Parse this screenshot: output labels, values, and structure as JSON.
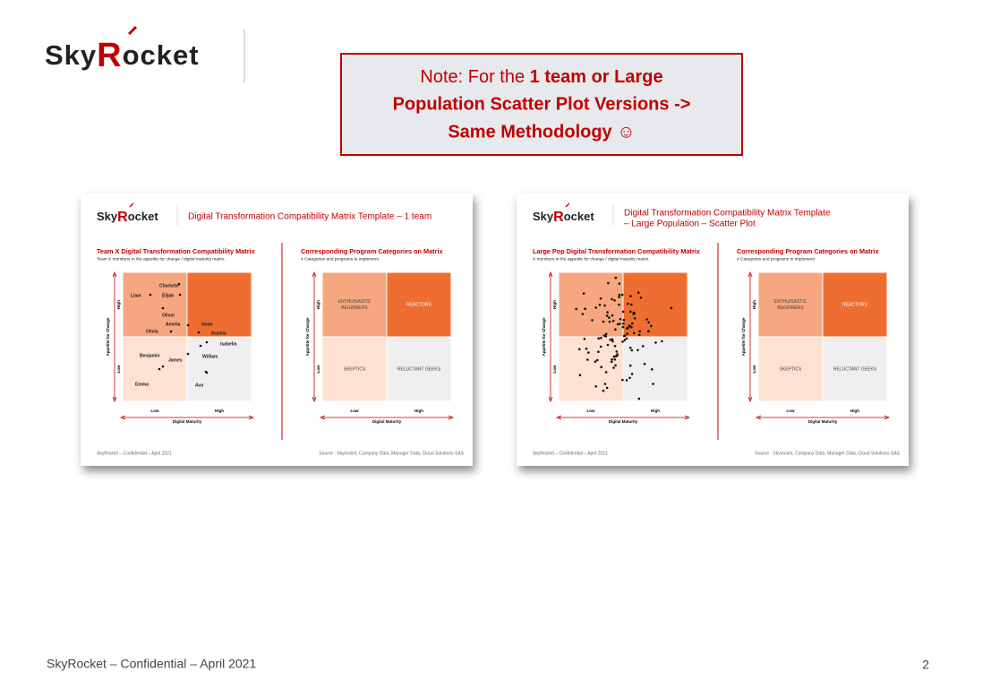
{
  "logo": {
    "parts": [
      "Sky",
      "R",
      "ocket"
    ]
  },
  "note": {
    "line1_regular": "Note: For the ",
    "line1_bold": "1 team or Large",
    "line2": "Population Scatter Plot Versions ->",
    "line3": "Same Methodology ☺"
  },
  "slides": [
    {
      "logo": [
        "Sky",
        "R",
        "ocket"
      ],
      "title": [
        "Digital Transformation Compatibility Matrix Template – 1 team"
      ],
      "left": {
        "title": "Team X Digital Transformation Compatibility Matrix",
        "subtitle": "Team X members in the appetite for change / digital maturity matrix.",
        "y_label": "Appetite for Change",
        "y_high": "High",
        "y_low": "Low",
        "x_label": "Digital Maturity",
        "x_low": "Low",
        "x_high": "High",
        "members": [
          "Charlotte",
          "Liam",
          "Elijah",
          "Oliver",
          "Amelia",
          "Noah",
          "Olivia",
          "Sophia",
          "Isabella",
          "Benjamin",
          "James",
          "William",
          "Emma",
          "Ava"
        ]
      },
      "right": {
        "title": "Corresponding Program Categories on Matrix",
        "subtitle": "4 Categories and programs to implement",
        "y_label": "Appetite for Change",
        "y_high": "High",
        "y_low": "Low",
        "x_label": "Digital Maturity",
        "x_low": "Low",
        "x_high": "High",
        "quadrants": [
          [
            "ENTHUISASTIC",
            "BEGINNERS"
          ],
          [
            "REACTORS"
          ],
          [
            "SKEPTICS"
          ],
          [
            "RELUCTANT GEEKS"
          ]
        ]
      },
      "footer": "SkyRocket – Confidential – April 2021",
      "source": "Source : Skyrocket, Company Data, Manager Data, Cloud Solutions SAS"
    },
    {
      "logo": [
        "Sky",
        "R",
        "ocket"
      ],
      "title": [
        "Digital Transformation Compatibility Matrix Template",
        "– Large Population – Scatter Plot"
      ],
      "left": {
        "title": "Large Pop Digital Transformation Compatibility Matrix",
        "subtitle": "X members in the appetite for change / digital maturity matrix.",
        "y_label": "Appetite for Change",
        "y_high": "High",
        "y_low": "Low",
        "x_label": "Digital Maturity",
        "x_low": "Low",
        "x_high": "High"
      },
      "right": {
        "title": "Corresponding Program Categories on Matrix",
        "subtitle": "4 Categories and programs to implement",
        "y_label": "Appetite for Change",
        "y_high": "High",
        "y_low": "Low",
        "x_label": "Digital Maturity",
        "x_low": "Low",
        "x_high": "High",
        "quadrants": [
          [
            "ENTHUISASTIC",
            "BEGINNERS"
          ],
          [
            "REACTORS"
          ],
          [
            "SKEPTICS"
          ],
          [
            "RELUCTANT GEEKS"
          ]
        ]
      },
      "footer": "SkyRocket – Confidential – April 2021",
      "source": "Source : Skyrocket, Company Data, Manager Data, Cloud Solutions SAS"
    }
  ],
  "footer": {
    "text": "SkyRocket – Confidential – April 2021",
    "page": "2"
  }
}
